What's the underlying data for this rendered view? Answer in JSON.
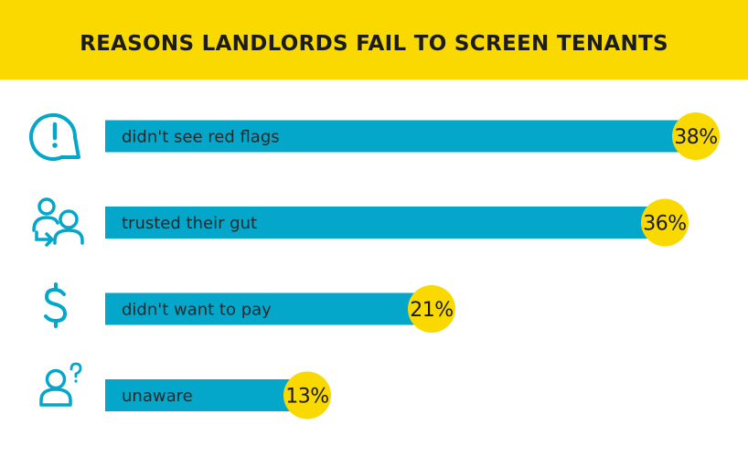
{
  "title": "REASONS LANDLORDS FAIL TO SCREEN TENANTS",
  "colors": {
    "banner": "#f9d900",
    "bar": "#04a6c9",
    "badge": "#f9d900",
    "icon": "#04a6c9"
  },
  "chart_data": {
    "type": "bar",
    "orientation": "horizontal",
    "title": "REASONS LANDLORDS FAIL TO SCREEN TENANTS",
    "categories": [
      "didn't see red flags",
      "trusted their gut",
      "didn't want to pay",
      "unaware"
    ],
    "values": [
      38,
      36,
      21,
      13
    ],
    "value_labels": [
      "38%",
      "36%",
      "21%",
      "13%"
    ],
    "icons": [
      "exclamation-circle-icon",
      "users-switch-icon",
      "dollar-icon",
      "person-question-icon"
    ],
    "unit": "%",
    "xlim": [
      0,
      38
    ],
    "grid": false,
    "legend": "none"
  }
}
